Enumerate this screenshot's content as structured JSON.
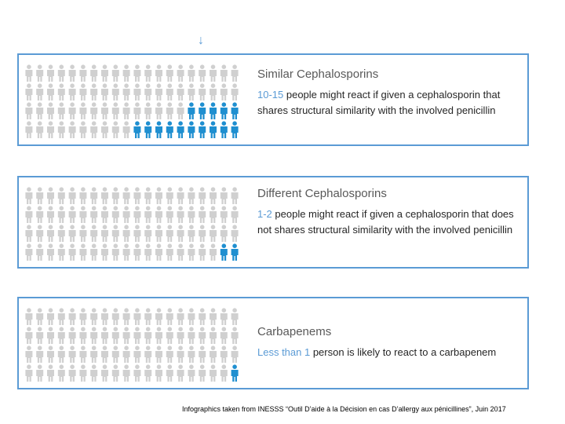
{
  "arrow_glyph": "↓",
  "colors": {
    "accent": "#5b9bd5",
    "people_gray": "#d0d0d0",
    "people_blue": "#1f8fd0"
  },
  "panels": [
    {
      "title": "Similar Cephalosporins",
      "count_text": "10-15",
      "text": " people might react if given a cephalosporin that shares structural similarity  with the involved penicillin",
      "highlighted_count": 15
    },
    {
      "title": "Different Cephalosporins",
      "count_text": "1-2",
      "text": " people might react if given a cephalosporin that does not shares structural similarity with the involved penicillin",
      "highlighted_count": 2
    },
    {
      "title": "Carbapenems",
      "prefix_text": "Less than 1",
      "text": " person is likely to react to a carbapenem",
      "highlighted_count": 1
    }
  ],
  "caption": "Infographics taken from INESSS “Outil D’aide à la Décision en cas D’allergy aux pénicillines”, Juin 2017"
}
